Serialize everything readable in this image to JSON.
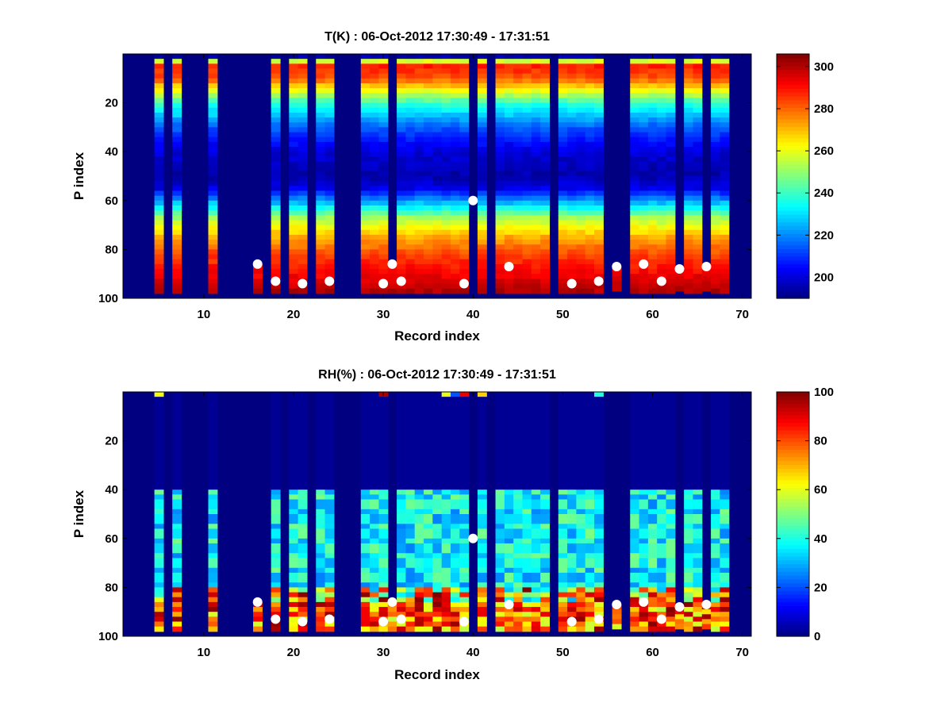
{
  "chart_data": [
    {
      "type": "heatmap",
      "title": "T(K) : 06-Oct-2012 17:30:49 - 17:31:51",
      "xlabel": "Record index",
      "ylabel": "P index",
      "xlim": [
        1,
        71
      ],
      "ylim": [
        0,
        100
      ],
      "y_reversed": true,
      "xticks": [
        "10",
        "20",
        "30",
        "40",
        "50",
        "60",
        "70"
      ],
      "yticks": [
        "20",
        "40",
        "60",
        "80",
        "100"
      ],
      "colorbar": {
        "range": [
          190,
          306
        ],
        "ticks": [
          "200",
          "220",
          "240",
          "260",
          "280",
          "300"
        ]
      },
      "colormap": "jet",
      "variable": "temperature",
      "gap_records": [
        1,
        2,
        3,
        4,
        6,
        8,
        9,
        10,
        12,
        13,
        14,
        15,
        17,
        19,
        22,
        25,
        26,
        27,
        40,
        42,
        49,
        55,
        57
      ],
      "partial_records": [
        {
          "record": 16,
          "top_p": 86
        },
        {
          "record": 31,
          "top_p": 86
        },
        {
          "record": 40,
          "top_p": 60
        },
        {
          "record": 56,
          "top_p": 87
        },
        {
          "record": 63,
          "top_p": 89
        },
        {
          "record": 66,
          "top_p": 87
        }
      ],
      "markers": [
        {
          "record": 16,
          "p": 86
        },
        {
          "record": 18,
          "p": 93
        },
        {
          "record": 21,
          "p": 94
        },
        {
          "record": 24,
          "p": 93
        },
        {
          "record": 30,
          "p": 94
        },
        {
          "record": 31,
          "p": 86
        },
        {
          "record": 32,
          "p": 93
        },
        {
          "record": 39,
          "p": 94
        },
        {
          "record": 40,
          "p": 60
        },
        {
          "record": 44,
          "p": 87
        },
        {
          "record": 51,
          "p": 94
        },
        {
          "record": 54,
          "p": 93
        },
        {
          "record": 56,
          "p": 87
        },
        {
          "record": 59,
          "p": 86
        },
        {
          "record": 61,
          "p": 93
        },
        {
          "record": 63,
          "p": 88
        },
        {
          "record": 66,
          "p": 87
        }
      ]
    },
    {
      "type": "heatmap",
      "title": "RH(%) : 06-Oct-2012 17:30:49 - 17:31:51",
      "xlabel": "Record index",
      "ylabel": "P index",
      "xlim": [
        1,
        71
      ],
      "ylim": [
        0,
        100
      ],
      "y_reversed": true,
      "xticks": [
        "10",
        "20",
        "30",
        "40",
        "50",
        "60",
        "70"
      ],
      "yticks": [
        "20",
        "40",
        "60",
        "80",
        "100"
      ],
      "colorbar": {
        "range": [
          0,
          100
        ],
        "ticks": [
          "0",
          "20",
          "40",
          "60",
          "80",
          "100"
        ]
      },
      "colormap": "jet",
      "variable": "humidity",
      "gap_records": [
        1,
        2,
        3,
        4,
        6,
        8,
        9,
        10,
        12,
        13,
        14,
        15,
        17,
        19,
        22,
        25,
        26,
        27,
        40,
        42,
        49,
        55,
        57
      ],
      "partial_records": [
        {
          "record": 16,
          "top_p": 86
        },
        {
          "record": 31,
          "top_p": 86
        },
        {
          "record": 40,
          "top_p": 60
        },
        {
          "record": 56,
          "top_p": 87
        },
        {
          "record": 63,
          "top_p": 89
        },
        {
          "record": 66,
          "top_p": 87
        }
      ],
      "markers": [
        {
          "record": 16,
          "p": 86
        },
        {
          "record": 18,
          "p": 93
        },
        {
          "record": 21,
          "p": 94
        },
        {
          "record": 24,
          "p": 93
        },
        {
          "record": 30,
          "p": 94
        },
        {
          "record": 31,
          "p": 86
        },
        {
          "record": 32,
          "p": 93
        },
        {
          "record": 39,
          "p": 94
        },
        {
          "record": 40,
          "p": 60
        },
        {
          "record": 44,
          "p": 87
        },
        {
          "record": 51,
          "p": 94
        },
        {
          "record": 54,
          "p": 93
        },
        {
          "record": 56,
          "p": 87
        },
        {
          "record": 59,
          "p": 86
        },
        {
          "record": 61,
          "p": 93
        },
        {
          "record": 63,
          "p": 88
        },
        {
          "record": 66,
          "p": 87
        }
      ]
    }
  ]
}
